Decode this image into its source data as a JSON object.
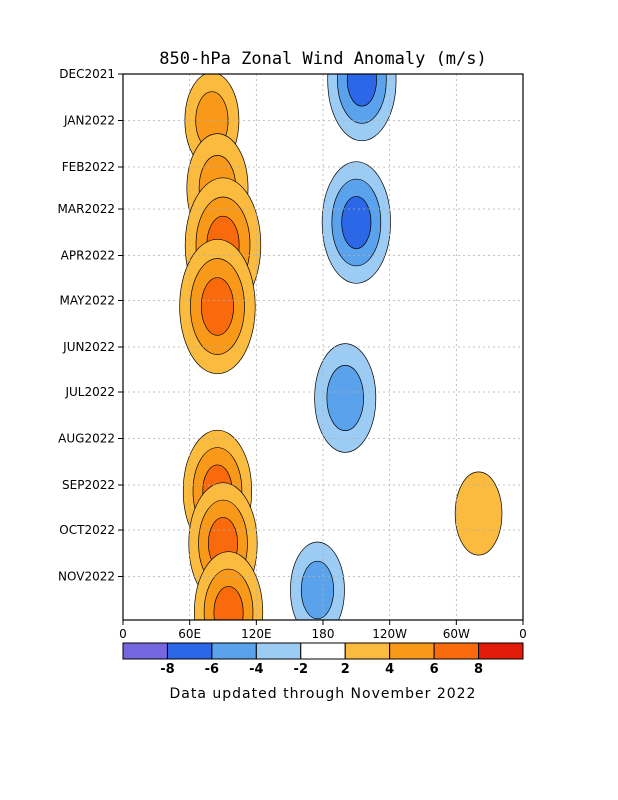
{
  "chart_data": {
    "type": "heatmap",
    "title": "850-hPa Zonal Wind Anomaly (m/s)",
    "xlabel": "",
    "ylabel": "",
    "x_ticks": [
      "0",
      "60E",
      "120E",
      "180",
      "120W",
      "60W",
      "0"
    ],
    "x_range_deg_east": [
      0,
      360
    ],
    "y_ticks": [
      "DEC2021",
      "JAN2022",
      "FEB2022",
      "MAR2022",
      "APR2022",
      "MAY2022",
      "JUN2022",
      "JUL2022",
      "AUG2022",
      "SEP2022",
      "OCT2022",
      "NOV2022"
    ],
    "time_range": [
      "2021-12-01",
      "2022-11-30"
    ],
    "grid": true,
    "contour_interval": 2,
    "colorbar": {
      "tick_labels": [
        "-8",
        "-6",
        "-4",
        "-2",
        "2",
        "4",
        "6",
        "8"
      ],
      "bins": [
        {
          "range": [
            -10,
            -8
          ],
          "color": "#7467e0"
        },
        {
          "range": [
            -8,
            -6
          ],
          "color": "#2b67e6"
        },
        {
          "range": [
            -6,
            -4
          ],
          "color": "#5aa2ec"
        },
        {
          "range": [
            -4,
            -2
          ],
          "color": "#9ccbf3"
        },
        {
          "range": [
            -2,
            2
          ],
          "color": "#ffffff"
        },
        {
          "range": [
            2,
            4
          ],
          "color": "#fbbb3e"
        },
        {
          "range": [
            4,
            6
          ],
          "color": "#f9991a"
        },
        {
          "range": [
            6,
            8
          ],
          "color": "#f96a0c"
        },
        {
          "range": [
            8,
            10
          ],
          "color": "#e11a0a"
        }
      ]
    },
    "anomaly_features": [
      {
        "lon": 80,
        "date": "2022-01-01",
        "value": 4
      },
      {
        "lon": 85,
        "date": "2022-02-15",
        "value": 5
      },
      {
        "lon": 90,
        "date": "2022-03-25",
        "value": 7
      },
      {
        "lon": 85,
        "date": "2022-05-05",
        "value": 7
      },
      {
        "lon": 210,
        "date": "2022-03-10",
        "value": -6
      },
      {
        "lon": 200,
        "date": "2022-07-05",
        "value": -5
      },
      {
        "lon": 85,
        "date": "2022-09-05",
        "value": 6
      },
      {
        "lon": 90,
        "date": "2022-10-10",
        "value": 6
      },
      {
        "lon": 95,
        "date": "2022-11-25",
        "value": 6
      },
      {
        "lon": 320,
        "date": "2022-09-20",
        "value": 3
      },
      {
        "lon": 175,
        "date": "2022-11-10",
        "value": -4
      },
      {
        "lon": 215,
        "date": "2021-12-05",
        "value": -6
      }
    ]
  },
  "footer": "Data updated through November 2022"
}
